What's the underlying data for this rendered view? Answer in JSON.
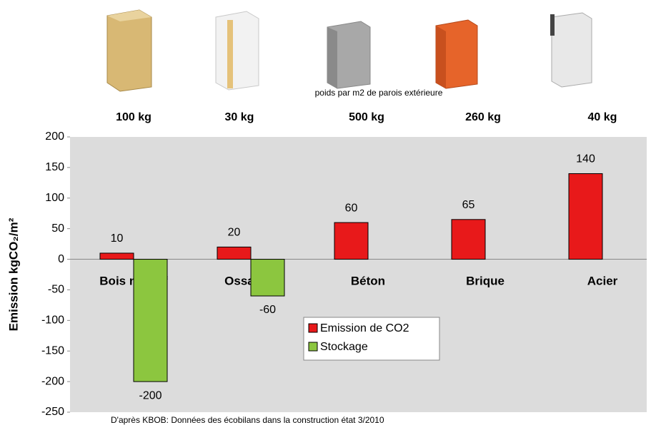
{
  "chart_data": {
    "type": "bar",
    "caption": "poids par m2 de parois extérieure",
    "weights": [
      "100 kg",
      "30 kg",
      "500 kg",
      "260 kg",
      "40 kg"
    ],
    "categories": [
      "Bois massif",
      "Ossature",
      "Béton",
      "Brique",
      "Acier"
    ],
    "series": [
      {
        "name": "Emission de CO2",
        "color": "#e8191a",
        "values": [
          10,
          20,
          60,
          65,
          140
        ]
      },
      {
        "name": "Stockage",
        "color": "#8cc63f",
        "values": [
          -200,
          -60,
          null,
          null,
          null
        ]
      }
    ],
    "ylabel": "Emission kgCO₂/m²",
    "ylim": [
      -250,
      200
    ],
    "yticks": [
      -250,
      -200,
      -150,
      -100,
      -50,
      0,
      50,
      100,
      150,
      200
    ],
    "source": "D'après KBOB: Données des écobilans dans la construction état 3/2010"
  }
}
